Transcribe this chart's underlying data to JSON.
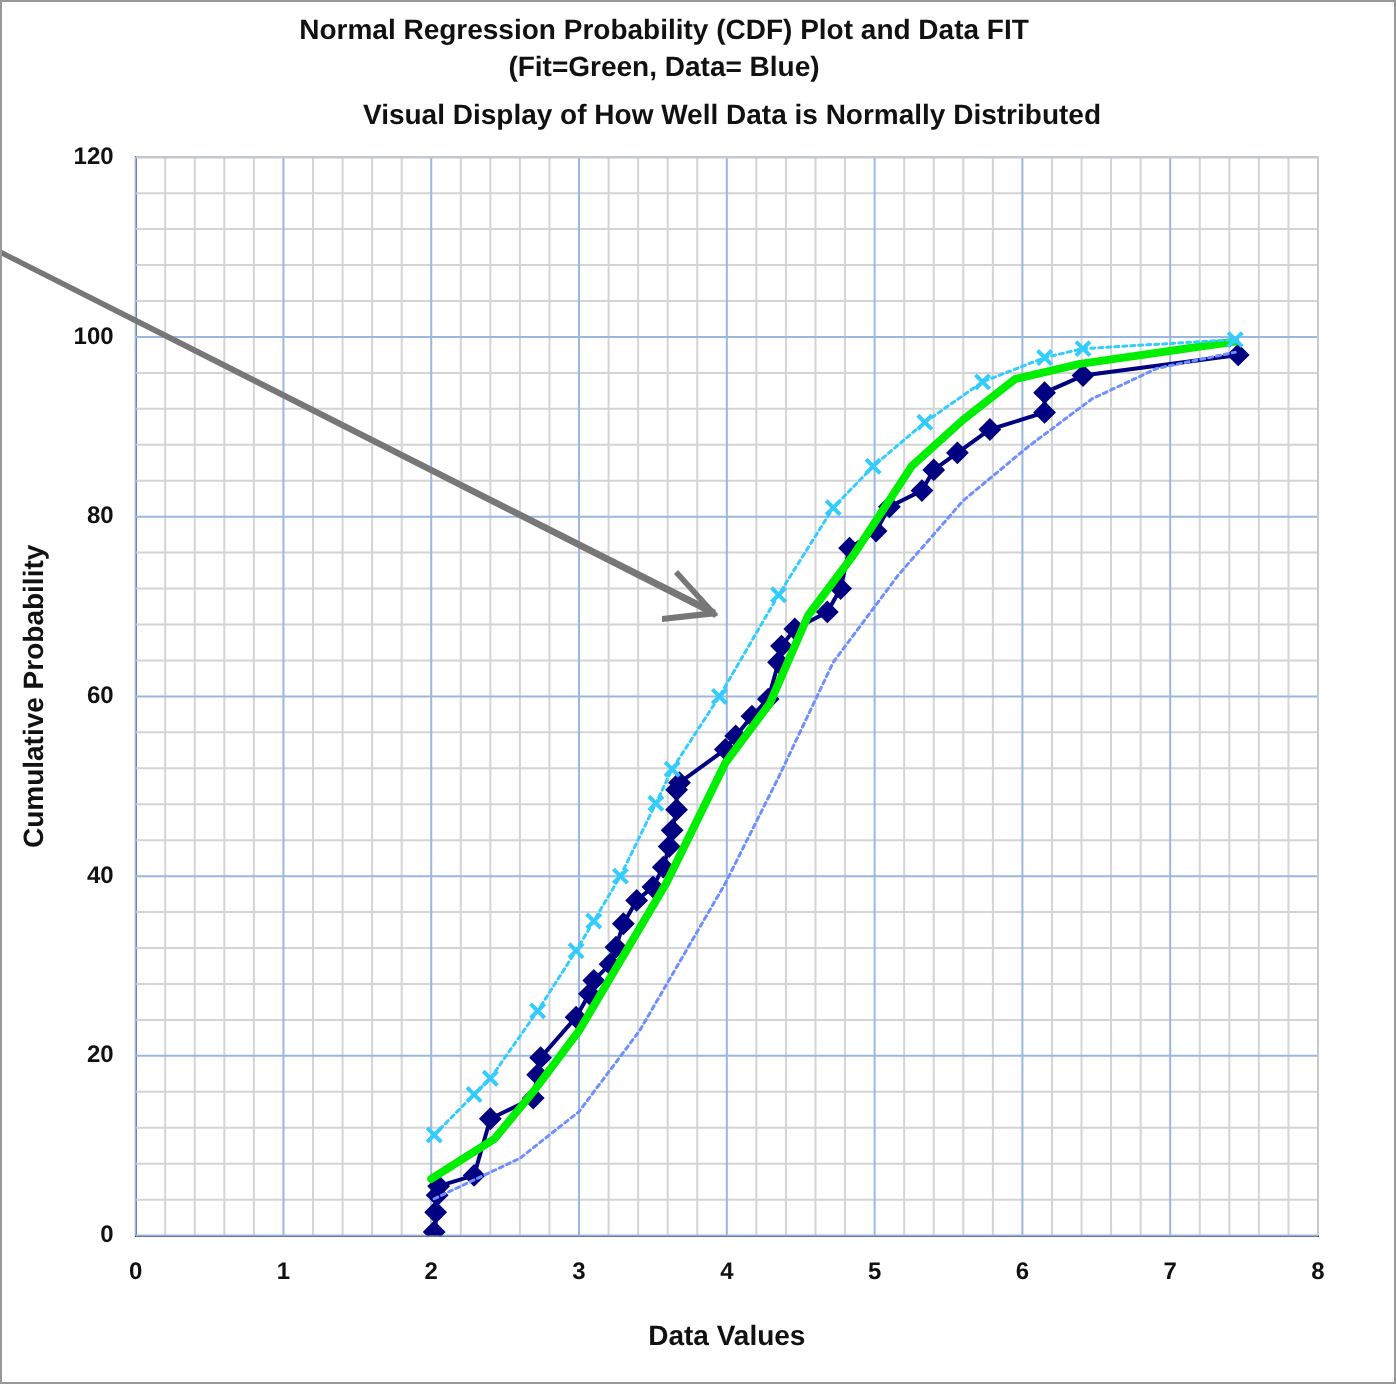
{
  "chart_data": {
    "type": "line",
    "title": "Normal Regression Probability (CDF) Plot and Data FIT",
    "subtitle": "(Fit=Green, Data= Blue)",
    "annotations": [
      "Visual Display of How Well Data is Normally Distributed"
    ],
    "xlabel": "Data Values",
    "ylabel": "Cumulative Probability",
    "xlim": [
      0,
      8
    ],
    "xticks": [
      0,
      1,
      2,
      3,
      4,
      5,
      6,
      7,
      8
    ],
    "ylim": [
      0,
      120
    ],
    "yticks": [
      0,
      20,
      40,
      60,
      80,
      100,
      120
    ],
    "grid": true,
    "legend": false,
    "series": [
      {
        "color": "#6f8fff",
        "marker": "none",
        "line_style": "dotted",
        "x": [
          2.02,
          2.6,
          3.0,
          3.41,
          3.99,
          4.35,
          4.72,
          5.16,
          5.6,
          6.04,
          6.47,
          6.91,
          7.44
        ],
        "values": [
          4.1,
          8.6,
          13.8,
          22.8,
          39.2,
          51,
          63.8,
          73.5,
          81.8,
          87.8,
          93.1,
          96.5,
          98.3
        ]
      },
      {
        "color": "#33ccff",
        "marker": "cross",
        "line_style": "dotted",
        "x": [
          2.02,
          2.29,
          2.4,
          2.72,
          2.98,
          3.1,
          3.28,
          3.52,
          3.63,
          3.95,
          4.35,
          4.72,
          4.99,
          5.34,
          5.73,
          6.15,
          6.41,
          7.44
        ],
        "values": [
          11.2,
          15.7,
          17.5,
          25,
          31.7,
          35,
          40,
          48.1,
          51.9,
          60,
          71.3,
          81,
          85.6,
          90.5,
          95,
          97.7,
          98.7,
          99.7
        ]
      },
      {
        "color": "#00ee00",
        "marker": "none",
        "line_style": "solid",
        "x": [
          2.0,
          2.43,
          2.69,
          3.0,
          3.59,
          3.99,
          4.29,
          4.55,
          4.86,
          5.25,
          5.6,
          5.95,
          6.39,
          7.44
        ],
        "values": [
          6.3,
          10.8,
          16,
          22.8,
          39.2,
          52.6,
          59.2,
          69,
          75.8,
          85.6,
          90.8,
          95.3,
          97,
          99.5
        ]
      },
      {
        "color": "#000080",
        "marker": "diamond",
        "line_style": "solid",
        "x": [
          2.02,
          2.03,
          2.04,
          2.05,
          2.29,
          2.4,
          2.69,
          2.72,
          2.74,
          2.98,
          3.07,
          3.1,
          3.21,
          3.25,
          3.3,
          3.39,
          3.5,
          3.57,
          3.61,
          3.63,
          3.66,
          3.66,
          3.68,
          3.99,
          4.06,
          4.17,
          4.28,
          4.35,
          4.37,
          4.46,
          4.68,
          4.77,
          4.83,
          5.01,
          5.1,
          5.32,
          5.4,
          5.56,
          5.78,
          6.15,
          6.15,
          6.41,
          7.46
        ],
        "values": [
          0.4,
          2.6,
          4.5,
          5.5,
          6.7,
          13,
          15.3,
          17.9,
          19.8,
          24.3,
          26.9,
          28.4,
          30.2,
          32.1,
          34.7,
          37.3,
          38.8,
          41,
          43.3,
          45.1,
          47.4,
          49.6,
          50.4,
          54.1,
          55.6,
          57.8,
          59.7,
          63.8,
          65.6,
          67.5,
          69.4,
          72,
          76.5,
          78.4,
          81.1,
          82.9,
          85.2,
          87.1,
          89.7,
          91.6,
          93.8,
          95.7,
          98
        ]
      }
    ]
  }
}
